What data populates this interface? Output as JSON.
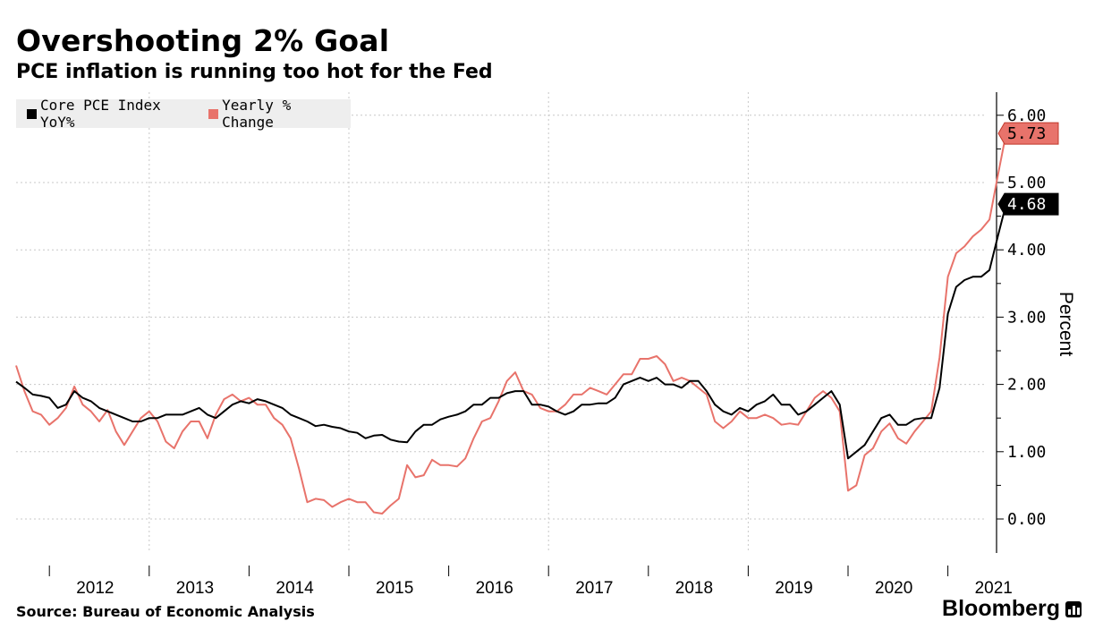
{
  "header": {
    "title": "Overshooting 2% Goal",
    "subtitle": "PCE inflation is running too hot for the Fed"
  },
  "legend": {
    "items": [
      {
        "label": "Core PCE Index YoY%",
        "color": "#000000"
      },
      {
        "label": "Yearly % Change",
        "color": "#e8736b"
      }
    ]
  },
  "footer": {
    "source": "Source: Bureau of Economic Analysis",
    "brand": "Bloomberg"
  },
  "chart_data": {
    "type": "line",
    "ylabel": "Percent",
    "ylim": [
      -0.5,
      6.3
    ],
    "yticks": [
      "0.00",
      "1.00",
      "2.00",
      "3.00",
      "4.00",
      "5.00",
      "6.00"
    ],
    "xticks": [
      "2012",
      "2013",
      "2014",
      "2015",
      "2016",
      "2017",
      "2018",
      "2019",
      "2020",
      "2021"
    ],
    "x_start": "2011-09",
    "x_end": "2021-08",
    "grid": true,
    "series": [
      {
        "name": "Core PCE Index YoY%",
        "color": "#000000",
        "last_value_label": "4.68",
        "values": [
          2.04,
          1.95,
          1.85,
          1.83,
          1.8,
          1.65,
          1.7,
          1.9,
          1.8,
          1.75,
          1.65,
          1.6,
          1.55,
          1.5,
          1.45,
          1.45,
          1.5,
          1.5,
          1.55,
          1.55,
          1.55,
          1.6,
          1.65,
          1.55,
          1.5,
          1.6,
          1.7,
          1.75,
          1.72,
          1.78,
          1.75,
          1.7,
          1.65,
          1.55,
          1.5,
          1.45,
          1.38,
          1.4,
          1.37,
          1.35,
          1.3,
          1.28,
          1.2,
          1.24,
          1.25,
          1.18,
          1.15,
          1.14,
          1.3,
          1.4,
          1.4,
          1.48,
          1.52,
          1.55,
          1.6,
          1.7,
          1.7,
          1.8,
          1.8,
          1.87,
          1.9,
          1.9,
          1.7,
          1.7,
          1.67,
          1.6,
          1.55,
          1.6,
          1.7,
          1.7,
          1.72,
          1.72,
          1.8,
          2.0,
          2.05,
          2.1,
          2.05,
          2.1,
          2.0,
          2.0,
          1.95,
          2.05,
          2.05,
          1.9,
          1.7,
          1.6,
          1.55,
          1.65,
          1.6,
          1.7,
          1.75,
          1.85,
          1.7,
          1.7,
          1.55,
          1.6,
          1.7,
          1.8,
          1.9,
          1.7,
          0.9,
          1.0,
          1.1,
          1.3,
          1.5,
          1.55,
          1.4,
          1.4,
          1.48,
          1.5,
          1.5,
          1.95,
          3.05,
          3.45,
          3.55,
          3.6,
          3.6,
          3.7,
          4.2,
          4.68
        ]
      },
      {
        "name": "Yearly % Change",
        "color": "#e8736b",
        "last_value_label": "5.73",
        "values": [
          2.28,
          1.9,
          1.6,
          1.55,
          1.4,
          1.5,
          1.65,
          1.97,
          1.7,
          1.6,
          1.45,
          1.62,
          1.3,
          1.1,
          1.3,
          1.5,
          1.6,
          1.45,
          1.15,
          1.05,
          1.3,
          1.45,
          1.45,
          1.2,
          1.55,
          1.78,
          1.85,
          1.75,
          1.8,
          1.7,
          1.7,
          1.5,
          1.4,
          1.2,
          0.75,
          0.25,
          0.3,
          0.28,
          0.18,
          0.25,
          0.3,
          0.25,
          0.25,
          0.1,
          0.08,
          0.2,
          0.3,
          0.8,
          0.62,
          0.65,
          0.88,
          0.8,
          0.8,
          0.78,
          0.9,
          1.2,
          1.45,
          1.5,
          1.75,
          2.05,
          2.18,
          1.9,
          1.85,
          1.65,
          1.6,
          1.6,
          1.7,
          1.85,
          1.85,
          1.95,
          1.9,
          1.85,
          2.0,
          2.15,
          2.15,
          2.38,
          2.38,
          2.42,
          2.3,
          2.05,
          2.1,
          2.05,
          1.95,
          1.85,
          1.45,
          1.35,
          1.45,
          1.6,
          1.5,
          1.5,
          1.55,
          1.5,
          1.4,
          1.42,
          1.4,
          1.6,
          1.8,
          1.9,
          1.8,
          1.6,
          0.42,
          0.5,
          0.95,
          1.05,
          1.3,
          1.42,
          1.2,
          1.12,
          1.3,
          1.45,
          1.6,
          2.4,
          3.6,
          3.95,
          4.05,
          4.2,
          4.3,
          4.45,
          5.1,
          5.73
        ]
      }
    ]
  }
}
